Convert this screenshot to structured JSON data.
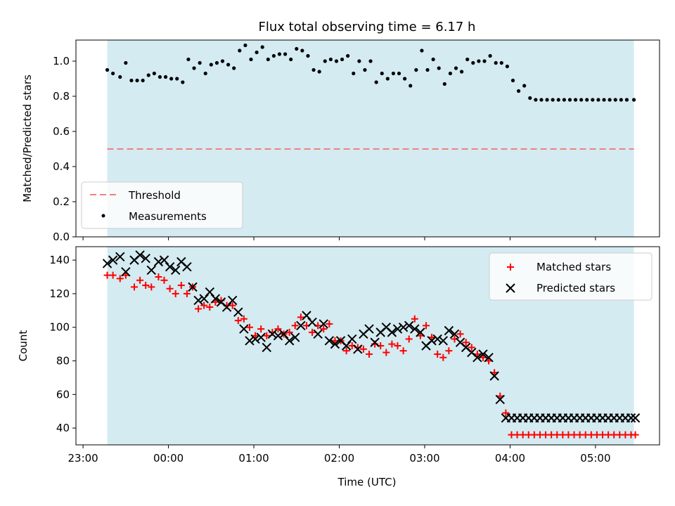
{
  "chart_data": [
    {
      "type": "scatter",
      "title": "Flux total observing time = 6.17 h",
      "xlabel": "",
      "ylabel": "Matched/Predicted stars",
      "xlim": [
        "22:55",
        "05:45"
      ],
      "ylim": [
        0,
        1.12
      ],
      "yticks": [
        0.0,
        0.2,
        0.4,
        0.6,
        0.8,
        1.0
      ],
      "ytick_labels": [
        "0.0",
        "0.2",
        "0.4",
        "0.6",
        "0.8",
        "1.0"
      ],
      "shaded_span": [
        "23:17",
        "05:27"
      ],
      "shade_color": "#d4ebf1",
      "threshold": {
        "name": "Threshold",
        "value": 0.5,
        "color": "#f08080",
        "style": "dashed"
      },
      "series": [
        {
          "name": "Measurements",
          "marker": "dot",
          "color": "#000000",
          "x": [
            "23:17",
            "23:21",
            "23:26",
            "23:30",
            "23:34",
            "23:38",
            "23:42",
            "23:46",
            "23:50",
            "23:54",
            "23:58",
            "00:02",
            "00:06",
            "00:10",
            "00:14",
            "00:18",
            "00:22",
            "00:26",
            "00:30",
            "00:34",
            "00:38",
            "00:42",
            "00:46",
            "00:50",
            "00:54",
            "00:58",
            "01:02",
            "01:06",
            "01:10",
            "01:14",
            "01:18",
            "01:22",
            "01:26",
            "01:30",
            "01:34",
            "01:38",
            "01:42",
            "01:46",
            "01:50",
            "01:54",
            "01:58",
            "02:02",
            "02:06",
            "02:10",
            "02:14",
            "02:18",
            "02:22",
            "02:26",
            "02:30",
            "02:34",
            "02:38",
            "02:42",
            "02:46",
            "02:50",
            "02:54",
            "02:58",
            "03:02",
            "03:06",
            "03:10",
            "03:14",
            "03:18",
            "03:22",
            "03:26",
            "03:30",
            "03:34",
            "03:38",
            "03:42",
            "03:46",
            "03:50",
            "03:54",
            "03:58",
            "04:02",
            "04:06",
            "04:10",
            "04:14",
            "04:18",
            "04:22",
            "04:26",
            "04:30",
            "04:34",
            "04:38",
            "04:42",
            "04:46",
            "04:50",
            "04:54",
            "04:58",
            "05:02",
            "05:06",
            "05:10",
            "05:14",
            "05:18",
            "05:22",
            "05:27"
          ],
          "y": [
            0.95,
            0.93,
            0.91,
            0.99,
            0.89,
            0.89,
            0.89,
            0.92,
            0.93,
            0.91,
            0.91,
            0.9,
            0.9,
            0.88,
            1.01,
            0.96,
            0.99,
            0.93,
            0.98,
            0.99,
            1.0,
            0.98,
            0.96,
            1.06,
            1.09,
            1.01,
            1.05,
            1.08,
            1.01,
            1.03,
            1.04,
            1.04,
            1.01,
            1.07,
            1.06,
            1.03,
            0.95,
            0.94,
            1.0,
            1.01,
            1.0,
            1.01,
            1.03,
            0.93,
            1.0,
            0.95,
            1.0,
            0.88,
            0.93,
            0.9,
            0.93,
            0.93,
            0.9,
            0.86,
            0.95,
            1.06,
            0.95,
            1.01,
            0.96,
            0.87,
            0.93,
            0.96,
            0.94,
            1.01,
            0.99,
            1.0,
            1.0,
            1.03,
            0.99,
            0.99,
            0.97,
            0.89,
            0.83,
            0.86,
            0.79,
            0.78,
            0.78,
            0.78,
            0.78,
            0.78,
            0.78,
            0.78,
            0.78,
            0.78,
            0.78,
            0.78,
            0.78,
            0.78,
            0.78,
            0.78,
            0.78,
            0.78,
            0.78
          ]
        }
      ],
      "legend": {
        "placement": "lower-left",
        "entries": [
          "Threshold",
          "Measurements"
        ]
      }
    },
    {
      "type": "scatter",
      "title": "",
      "xlabel": "Time (UTC)",
      "ylabel": "Count",
      "xlim": [
        "22:55",
        "05:45"
      ],
      "ylim": [
        30,
        148
      ],
      "xticks": [
        "23:00",
        "00:00",
        "01:00",
        "02:00",
        "03:00",
        "04:00",
        "05:00"
      ],
      "yticks": [
        40,
        60,
        80,
        100,
        120,
        140
      ],
      "ytick_labels": [
        "40",
        "60",
        "80",
        "100",
        "120",
        "140"
      ],
      "shaded_span": [
        "23:17",
        "05:27"
      ],
      "shade_color": "#d4ebf1",
      "series": [
        {
          "name": "Matched stars",
          "marker": "plus",
          "color": "#ff0000",
          "x": [
            "23:17",
            "23:21",
            "23:26",
            "23:30",
            "23:36",
            "23:40",
            "23:44",
            "23:48",
            "23:53",
            "23:57",
            "00:01",
            "00:05",
            "00:09",
            "00:13",
            "00:17",
            "00:21",
            "00:25",
            "00:29",
            "00:33",
            "00:37",
            "00:41",
            "00:45",
            "00:49",
            "00:53",
            "00:57",
            "01:01",
            "01:05",
            "01:09",
            "01:13",
            "01:17",
            "01:21",
            "01:25",
            "01:29",
            "01:33",
            "01:37",
            "01:41",
            "01:45",
            "01:49",
            "01:53",
            "01:57",
            "02:01",
            "02:05",
            "02:09",
            "02:13",
            "02:17",
            "02:21",
            "02:25",
            "02:29",
            "02:33",
            "02:37",
            "02:41",
            "02:45",
            "02:49",
            "02:53",
            "02:57",
            "03:01",
            "03:05",
            "03:09",
            "03:13",
            "03:17",
            "03:21",
            "03:25",
            "03:29",
            "03:33",
            "03:37",
            "03:41",
            "03:45",
            "03:49",
            "03:53",
            "03:57",
            "04:01",
            "04:05",
            "04:09",
            "04:13",
            "04:17",
            "04:21",
            "04:25",
            "04:29",
            "04:33",
            "04:37",
            "04:41",
            "04:45",
            "04:49",
            "04:53",
            "04:57",
            "05:01",
            "05:05",
            "05:09",
            "05:13",
            "05:17",
            "05:21",
            "05:25",
            "05:28"
          ],
          "y": [
            131,
            131,
            129,
            131,
            124,
            128,
            125,
            124,
            130,
            128,
            123,
            120,
            125,
            120,
            124,
            111,
            113,
            112,
            115,
            116,
            113,
            113,
            104,
            105,
            100,
            95,
            99,
            95,
            97,
            99,
            96,
            97,
            101,
            106,
            101,
            97,
            101,
            99,
            102,
            92,
            92,
            86,
            89,
            88,
            87,
            84,
            90,
            89,
            85,
            90,
            89,
            86,
            93,
            105,
            95,
            101,
            94,
            84,
            82,
            86,
            93,
            96,
            91,
            88,
            84,
            82,
            80,
            73,
            59,
            49,
            36,
            36,
            36,
            36,
            36,
            36,
            36,
            36,
            36,
            36,
            36,
            36,
            36,
            36,
            36,
            36,
            36,
            36,
            36,
            36,
            36,
            36,
            36
          ]
        },
        {
          "name": "Predicted stars",
          "marker": "x",
          "color": "#000000",
          "x": [
            "23:17",
            "23:21",
            "23:26",
            "23:30",
            "23:36",
            "23:40",
            "23:44",
            "23:48",
            "23:53",
            "23:57",
            "00:01",
            "00:05",
            "00:09",
            "00:13",
            "00:17",
            "00:21",
            "00:25",
            "00:29",
            "00:33",
            "00:37",
            "00:41",
            "00:45",
            "00:49",
            "00:53",
            "00:57",
            "01:01",
            "01:05",
            "01:09",
            "01:13",
            "01:17",
            "01:21",
            "01:25",
            "01:29",
            "01:33",
            "01:37",
            "01:41",
            "01:45",
            "01:49",
            "01:53",
            "01:57",
            "02:01",
            "02:05",
            "02:09",
            "02:13",
            "02:17",
            "02:21",
            "02:25",
            "02:29",
            "02:33",
            "02:37",
            "02:41",
            "02:45",
            "02:49",
            "02:53",
            "02:57",
            "03:01",
            "03:05",
            "03:09",
            "03:13",
            "03:17",
            "03:21",
            "03:25",
            "03:29",
            "03:33",
            "03:37",
            "03:41",
            "03:45",
            "03:49",
            "03:53",
            "03:57",
            "04:01",
            "04:05",
            "04:09",
            "04:13",
            "04:17",
            "04:21",
            "04:25",
            "04:29",
            "04:33",
            "04:37",
            "04:41",
            "04:45",
            "04:49",
            "04:53",
            "04:57",
            "05:01",
            "05:05",
            "05:09",
            "05:13",
            "05:17",
            "05:21",
            "05:25",
            "05:28"
          ],
          "y": [
            138,
            140,
            142,
            133,
            140,
            143,
            141,
            134,
            139,
            140,
            136,
            134,
            139,
            136,
            124,
            116,
            117,
            121,
            117,
            115,
            112,
            116,
            109,
            99,
            92,
            93,
            94,
            88,
            96,
            95,
            96,
            92,
            94,
            101,
            107,
            103,
            96,
            102,
            92,
            90,
            92,
            89,
            93,
            87,
            96,
            99,
            91,
            97,
            100,
            97,
            99,
            100,
            101,
            99,
            97,
            89,
            92,
            93,
            92,
            98,
            96,
            91,
            88,
            85,
            82,
            84,
            82,
            71,
            57,
            46,
            46,
            46,
            46,
            46,
            46,
            46,
            46,
            46,
            46,
            46,
            46,
            46,
            46,
            46,
            46,
            46,
            46,
            46,
            46,
            46,
            46,
            46,
            46
          ]
        }
      ],
      "legend": {
        "placement": "top-right",
        "entries": [
          "Matched stars",
          "Predicted stars"
        ]
      }
    }
  ]
}
